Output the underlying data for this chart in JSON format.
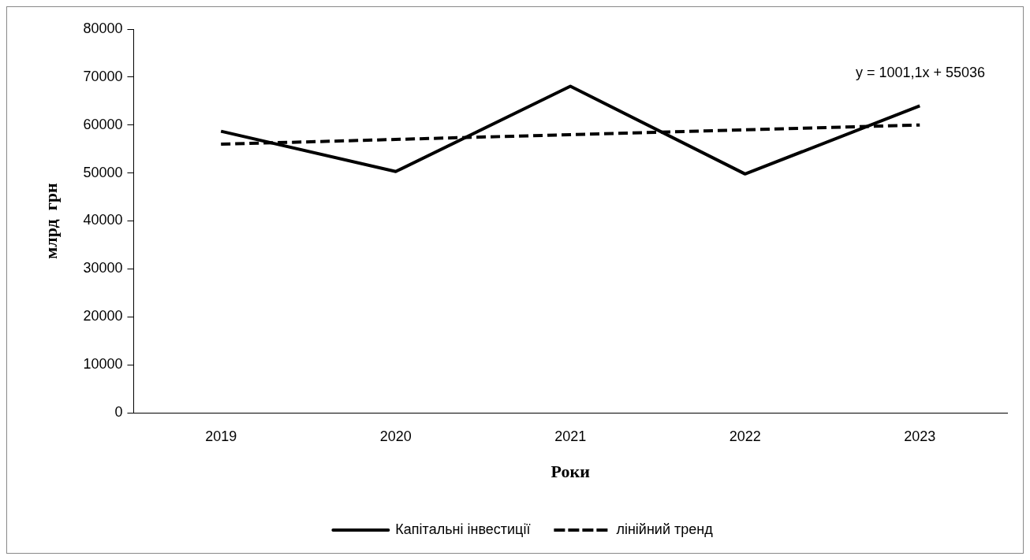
{
  "chart_data": {
    "type": "line",
    "xlabel": "Роки",
    "ylabel": "млрд  грн",
    "categories": [
      "2019",
      "2020",
      "2021",
      "2022",
      "2023"
    ],
    "series": [
      {
        "name": "Капітальні інвестиції",
        "color": "#000000",
        "values": [
          58700,
          50300,
          68100,
          49800,
          64000
        ],
        "line_style": "solid"
      },
      {
        "name": "лінійний тренд",
        "color": "#000000",
        "values": [
          56000,
          57000,
          58000,
          59000,
          60000
        ],
        "line_style": "dashed"
      }
    ],
    "ylim": [
      0,
      80000
    ],
    "yticks": [
      0,
      10000,
      20000,
      30000,
      40000,
      50000,
      60000,
      70000,
      80000
    ],
    "annotations": [
      "y = 1001,1x + 55036"
    ],
    "grid": false,
    "legend": "bottom",
    "marker": "none"
  }
}
